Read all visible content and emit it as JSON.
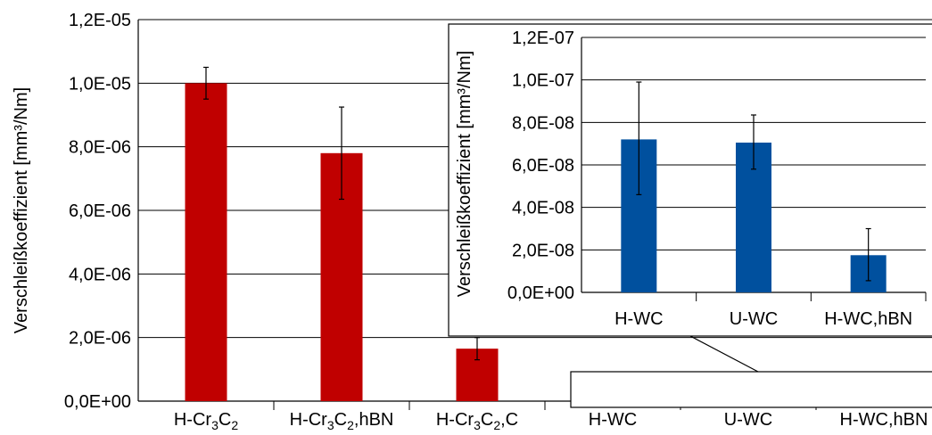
{
  "chart_data": [
    {
      "id": "main",
      "type": "bar",
      "ylabel": "Verschleißkoeffizient [mm³/Nm]",
      "ylim": [
        0,
        1.2e-05
      ],
      "yticks": [
        "0,0E+00",
        "2,0E-06",
        "4,0E-06",
        "6,0E-06",
        "8,0E-06",
        "1,0E-05",
        "1,2E-05"
      ],
      "grid": true,
      "categories": [
        {
          "base": "H-Cr",
          "sub1": "3",
          "mid": "C",
          "sub2": "2",
          "suffix": ""
        },
        {
          "base": "H-Cr",
          "sub1": "3",
          "mid": "C",
          "sub2": "2",
          "suffix": ",hBN"
        },
        {
          "base": "H-Cr",
          "sub1": "3",
          "mid": "C",
          "sub2": "2",
          "suffix": ",C"
        },
        {
          "base": "H-WC",
          "sub1": "",
          "mid": "",
          "sub2": "",
          "suffix": ""
        },
        {
          "base": "U-WC",
          "sub1": "",
          "mid": "",
          "sub2": "",
          "suffix": ""
        },
        {
          "base": "H-WC,hBN",
          "sub1": "",
          "mid": "",
          "sub2": "",
          "suffix": ""
        }
      ],
      "values": [
        1e-05,
        7.8e-06,
        1.65e-06,
        7.2e-08,
        7e-08,
        1.8e-08
      ],
      "err_low": [
        9.5e-06,
        6.35e-06,
        1.3e-06,
        4.6e-08,
        5.8e-08,
        6e-09
      ],
      "err_high": [
        1.05e-05,
        9.25e-06,
        2e-06,
        9.9e-08,
        8.4e-08,
        3e-08
      ],
      "colors": [
        "#c00000",
        "#c00000",
        "#c00000",
        "#00509e",
        "#00509e",
        "#00509e"
      ]
    },
    {
      "id": "inset",
      "type": "bar",
      "ylabel": "Verschleißkoeffizient [mm³/Nm]",
      "ylim": [
        0,
        1.2e-07
      ],
      "yticks": [
        "0,0E+00",
        "2,0E-08",
        "4,0E-08",
        "6,0E-08",
        "8,0E-08",
        "1,0E-07",
        "1,2E-07"
      ],
      "grid": true,
      "categories": [
        "H-WC",
        "U-WC",
        "H-WC,hBN"
      ],
      "values": [
        7.2e-08,
        7.05e-08,
        1.75e-08
      ],
      "err_low": [
        4.6e-08,
        5.8e-08,
        5.5e-09
      ],
      "err_high": [
        9.9e-08,
        8.35e-08,
        3e-08
      ],
      "color": "#00509e"
    }
  ]
}
